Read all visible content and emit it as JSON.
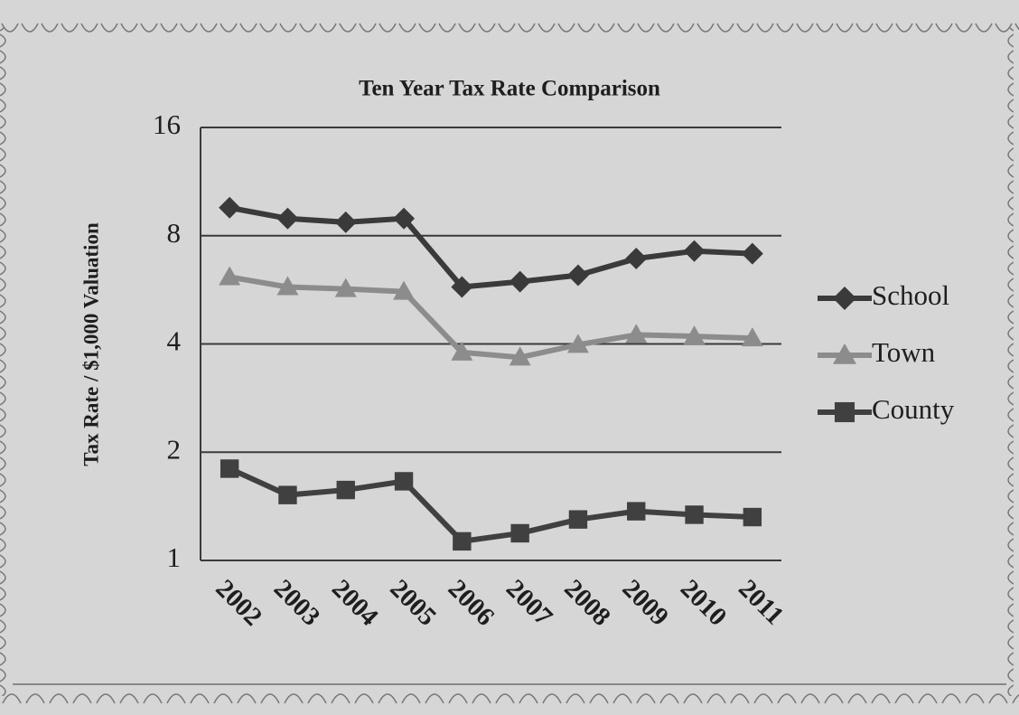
{
  "chart_data": {
    "type": "line",
    "title": "Ten Year Tax Rate Comparison",
    "y_label": "Tax Rate / $1,000 Valuation",
    "categories": [
      "2002",
      "2003",
      "2004",
      "2005",
      "2006",
      "2007",
      "2008",
      "2009",
      "2010",
      "2011"
    ],
    "series": [
      {
        "name": "School",
        "color": "#3a3a3a",
        "marker": "diamond",
        "values": [
          9.57,
          8.93,
          8.72,
          8.93,
          5.76,
          5.96,
          6.21,
          6.91,
          7.25,
          7.13
        ]
      },
      {
        "name": "Town",
        "color": "#8c8c8c",
        "marker": "triangle",
        "values": [
          6.14,
          5.76,
          5.69,
          5.59,
          3.79,
          3.67,
          3.98,
          4.24,
          4.2,
          4.15
        ]
      },
      {
        "name": "County",
        "color": "#404040",
        "marker": "square",
        "values": [
          1.8,
          1.52,
          1.57,
          1.66,
          1.13,
          1.19,
          1.3,
          1.37,
          1.34,
          1.32
        ]
      }
    ],
    "ylim": [
      1,
      16
    ],
    "yticks": [
      1,
      2,
      4,
      8,
      16
    ],
    "log_scale": true,
    "grid": true,
    "legend": "right"
  }
}
